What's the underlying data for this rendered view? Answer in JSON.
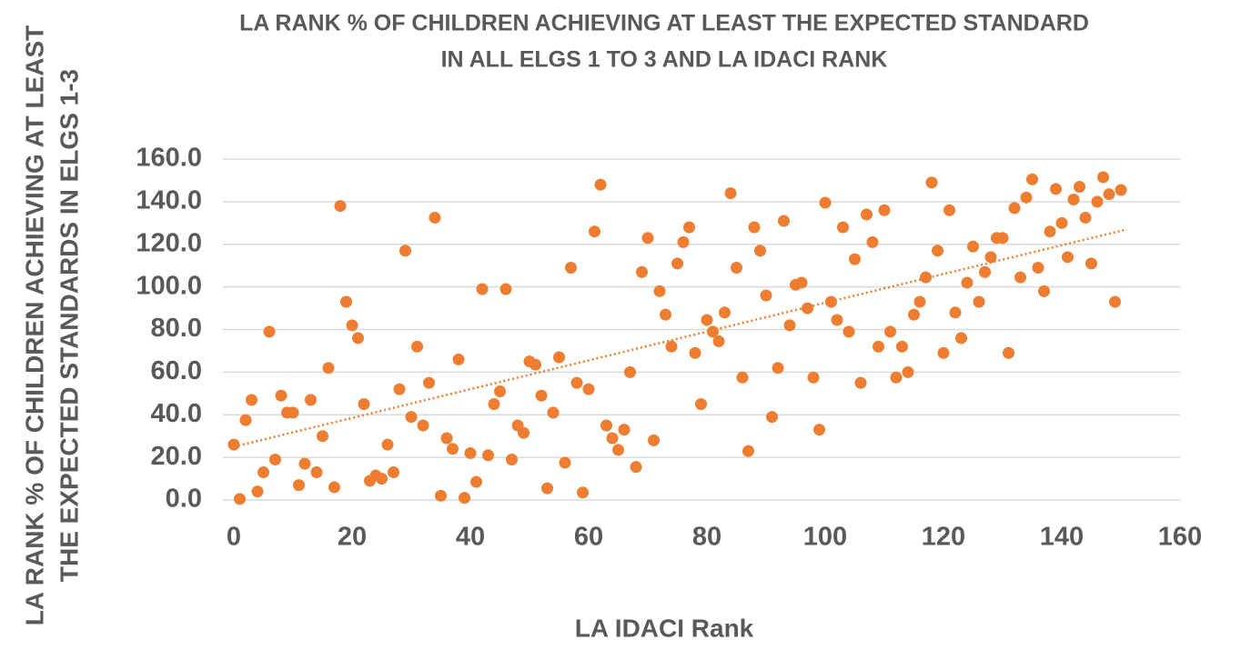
{
  "chart_data": {
    "type": "scatter",
    "title": [
      "LA RANK % OF CHILDREN ACHIEVING AT LEAST THE EXPECTED STANDARD",
      "IN ALL ELGS 1 TO 3 AND LA IDACI RANK"
    ],
    "x_label": "LA IDACI Rank",
    "y_label": [
      "LA RANK % OF CHILDREN ACHIEVING AT LEAST",
      "THE EXPECTED STANDARDS IN ELGS 1-3"
    ],
    "color": "#ed7d31",
    "x": [
      0,
      1,
      2,
      3,
      4,
      5,
      6,
      7,
      8,
      9,
      10,
      11,
      12,
      13,
      14,
      15,
      16,
      17,
      18,
      19,
      20,
      21,
      22,
      23,
      24,
      25,
      26,
      27,
      28,
      29,
      30,
      31,
      32,
      33,
      34,
      35,
      36,
      37,
      38,
      39,
      40,
      41,
      42,
      43,
      44,
      45,
      46,
      47,
      48,
      49,
      50,
      51,
      52,
      53,
      54,
      55,
      56,
      57,
      58,
      59,
      60,
      61,
      62,
      63,
      64,
      65,
      66,
      67,
      68,
      69,
      70,
      71,
      72,
      73,
      74,
      75,
      76,
      77,
      78,
      79,
      80,
      81,
      82,
      83,
      84,
      85,
      86,
      87,
      88,
      89,
      90,
      91,
      92,
      93,
      94,
      95,
      96,
      97,
      98,
      99,
      100,
      101,
      102,
      103,
      104,
      105,
      106,
      107,
      108,
      109,
      110,
      111,
      112,
      113,
      114,
      115,
      116,
      117,
      118,
      119,
      120,
      121,
      122,
      123,
      124,
      125,
      126,
      127,
      128,
      129,
      130,
      131,
      132,
      133,
      134,
      135,
      136,
      137,
      138,
      139,
      140,
      141,
      142,
      143,
      144,
      145,
      146,
      147,
      148,
      149,
      150
    ],
    "values": [
      26,
      0.5,
      37.5,
      47,
      4,
      13,
      79,
      19,
      49,
      41,
      41,
      7,
      17,
      47,
      13,
      30,
      62,
      6,
      138,
      93,
      82,
      76,
      45,
      9,
      11.5,
      10,
      26,
      13,
      52,
      117,
      39,
      72,
      35,
      55,
      132.5,
      2,
      29,
      24,
      66,
      1,
      22,
      8.5,
      99,
      21,
      45,
      51,
      99,
      19,
      35,
      31.5,
      65,
      63.5,
      49,
      5.5,
      41,
      67,
      17.5,
      109,
      55,
      3.5,
      52,
      126,
      148,
      35,
      29,
      23.5,
      33,
      60,
      15.5,
      107,
      123,
      28,
      98,
      87,
      72,
      111,
      121,
      128,
      69,
      45,
      84.5,
      79,
      74.5,
      88,
      144,
      109,
      57.5,
      23,
      128,
      117,
      96,
      39,
      62,
      131,
      82,
      101,
      102,
      90,
      57.5,
      33,
      139.5,
      93,
      84.5,
      128,
      79,
      113,
      55,
      134,
      121,
      72,
      136,
      79,
      57.5,
      72,
      60,
      87,
      93,
      104.5,
      149,
      117,
      69,
      136,
      88,
      76,
      102,
      119,
      93,
      107,
      114,
      123,
      123,
      69,
      137,
      104.5,
      142,
      150.5,
      109,
      98,
      126,
      146,
      130,
      114,
      141,
      147,
      132.5,
      111,
      140,
      151.5,
      143.5,
      93,
      145.5
    ],
    "trendline": {
      "x": [
        0,
        151
      ],
      "values": [
        25,
        127
      ],
      "color": "#ed7d31",
      "style": "dotted"
    },
    "xlim": [
      0,
      160
    ],
    "xticks": [
      0,
      20,
      40,
      60,
      80,
      100,
      120,
      140,
      160
    ],
    "ylim": [
      0,
      160
    ],
    "yticks": [
      {
        "value": 0,
        "label": "0.0"
      },
      {
        "value": 20,
        "label": "20.0"
      },
      {
        "value": 40,
        "label": "40.0"
      },
      {
        "value": 60,
        "label": "60.0"
      },
      {
        "value": 80,
        "label": "80.0"
      },
      {
        "value": 100,
        "label": "100.0"
      },
      {
        "value": 120,
        "label": "120.0"
      },
      {
        "value": 140,
        "label": "140.0"
      },
      {
        "value": 160,
        "label": "160.0"
      }
    ],
    "grid": true
  }
}
